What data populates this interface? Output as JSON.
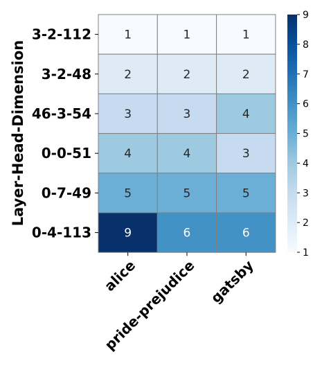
{
  "chart_data": {
    "type": "heatmap",
    "ylabel": "Layer-Head-Dimension",
    "xlabel": "",
    "rows": [
      "3-2-112",
      "3-2-48",
      "46-3-54",
      "0-0-51",
      "0-7-49",
      "0-4-113"
    ],
    "columns": [
      "alice",
      "pride-prejudice",
      "gatsby"
    ],
    "values": [
      [
        1,
        1,
        1
      ],
      [
        2,
        2,
        2
      ],
      [
        3,
        3,
        4
      ],
      [
        4,
        4,
        3
      ],
      [
        5,
        5,
        5
      ],
      [
        9,
        6,
        6
      ]
    ],
    "colorbar": {
      "min": 1,
      "max": 9,
      "ticks": [
        1,
        2,
        3,
        4,
        5,
        6,
        7,
        8,
        9
      ],
      "colormap": "Blues"
    },
    "colors": {
      "low": "#f7fbff",
      "high": "#08306b",
      "gridline": "#808080"
    }
  }
}
